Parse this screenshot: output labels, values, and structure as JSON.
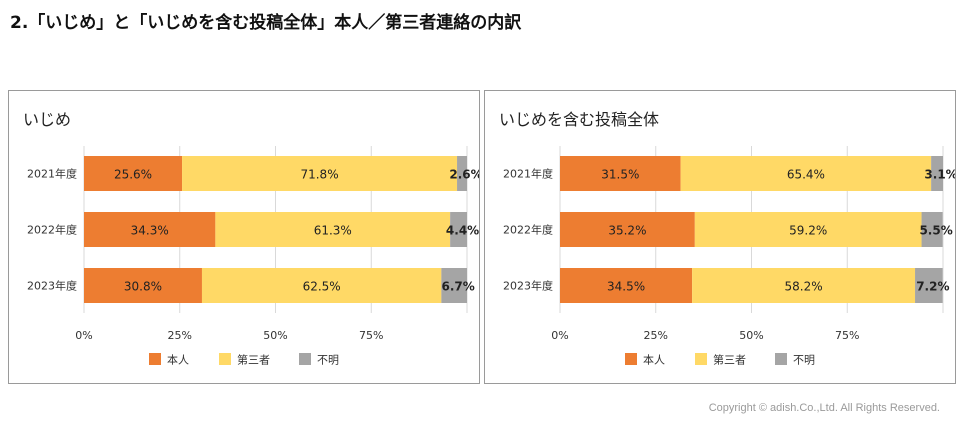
{
  "page": {
    "title": "2.「いじめ」と「いじめを含む投稿全体」本人／第三者連絡の内訳",
    "copyright": "Copyright © adish.Co.,Ltd.  All Rights Reserved."
  },
  "colors": {
    "self": "#ED7D31",
    "third": "#FFD966",
    "unknown": "#A5A5A5",
    "grid": "#d9d9d9"
  },
  "chart_data": [
    {
      "type": "bar",
      "orientation": "horizontal",
      "stacked": true,
      "title": "いじめ",
      "categories": [
        "2021年度",
        "2022年度",
        "2023年度"
      ],
      "series": [
        {
          "name": "本人",
          "values": [
            25.6,
            34.3,
            30.8
          ],
          "labels": [
            "25.6%",
            "34.3%",
            "30.8%"
          ]
        },
        {
          "name": "第三者",
          "values": [
            71.8,
            61.3,
            62.5
          ],
          "labels": [
            "71.8%",
            "61.3%",
            "62.5%"
          ]
        },
        {
          "name": "不明",
          "values": [
            2.6,
            4.4,
            6.7
          ],
          "labels": [
            "2.6%",
            "4.4%",
            "6.7%"
          ]
        }
      ],
      "xticks": [
        "0%",
        "25%",
        "50%",
        "75%"
      ],
      "xlim": [
        0,
        100
      ],
      "grid": true,
      "legend": "bottom"
    },
    {
      "type": "bar",
      "orientation": "horizontal",
      "stacked": true,
      "title": "いじめを含む投稿全体",
      "categories": [
        "2021年度",
        "2022年度",
        "2023年度"
      ],
      "series": [
        {
          "name": "本人",
          "values": [
            31.5,
            35.2,
            34.5
          ],
          "labels": [
            "31.5%",
            "35.2%",
            "34.5%"
          ]
        },
        {
          "name": "第三者",
          "values": [
            65.4,
            59.2,
            58.2
          ],
          "labels": [
            "65.4%",
            "59.2%",
            "58.2%"
          ]
        },
        {
          "name": "不明",
          "values": [
            3.1,
            5.5,
            7.2
          ],
          "labels": [
            "3.1%",
            "5.5%",
            "7.2%"
          ]
        }
      ],
      "xticks": [
        "0%",
        "25%",
        "50%",
        "75%"
      ],
      "xlim": [
        0,
        100
      ],
      "grid": true,
      "legend": "bottom"
    }
  ]
}
